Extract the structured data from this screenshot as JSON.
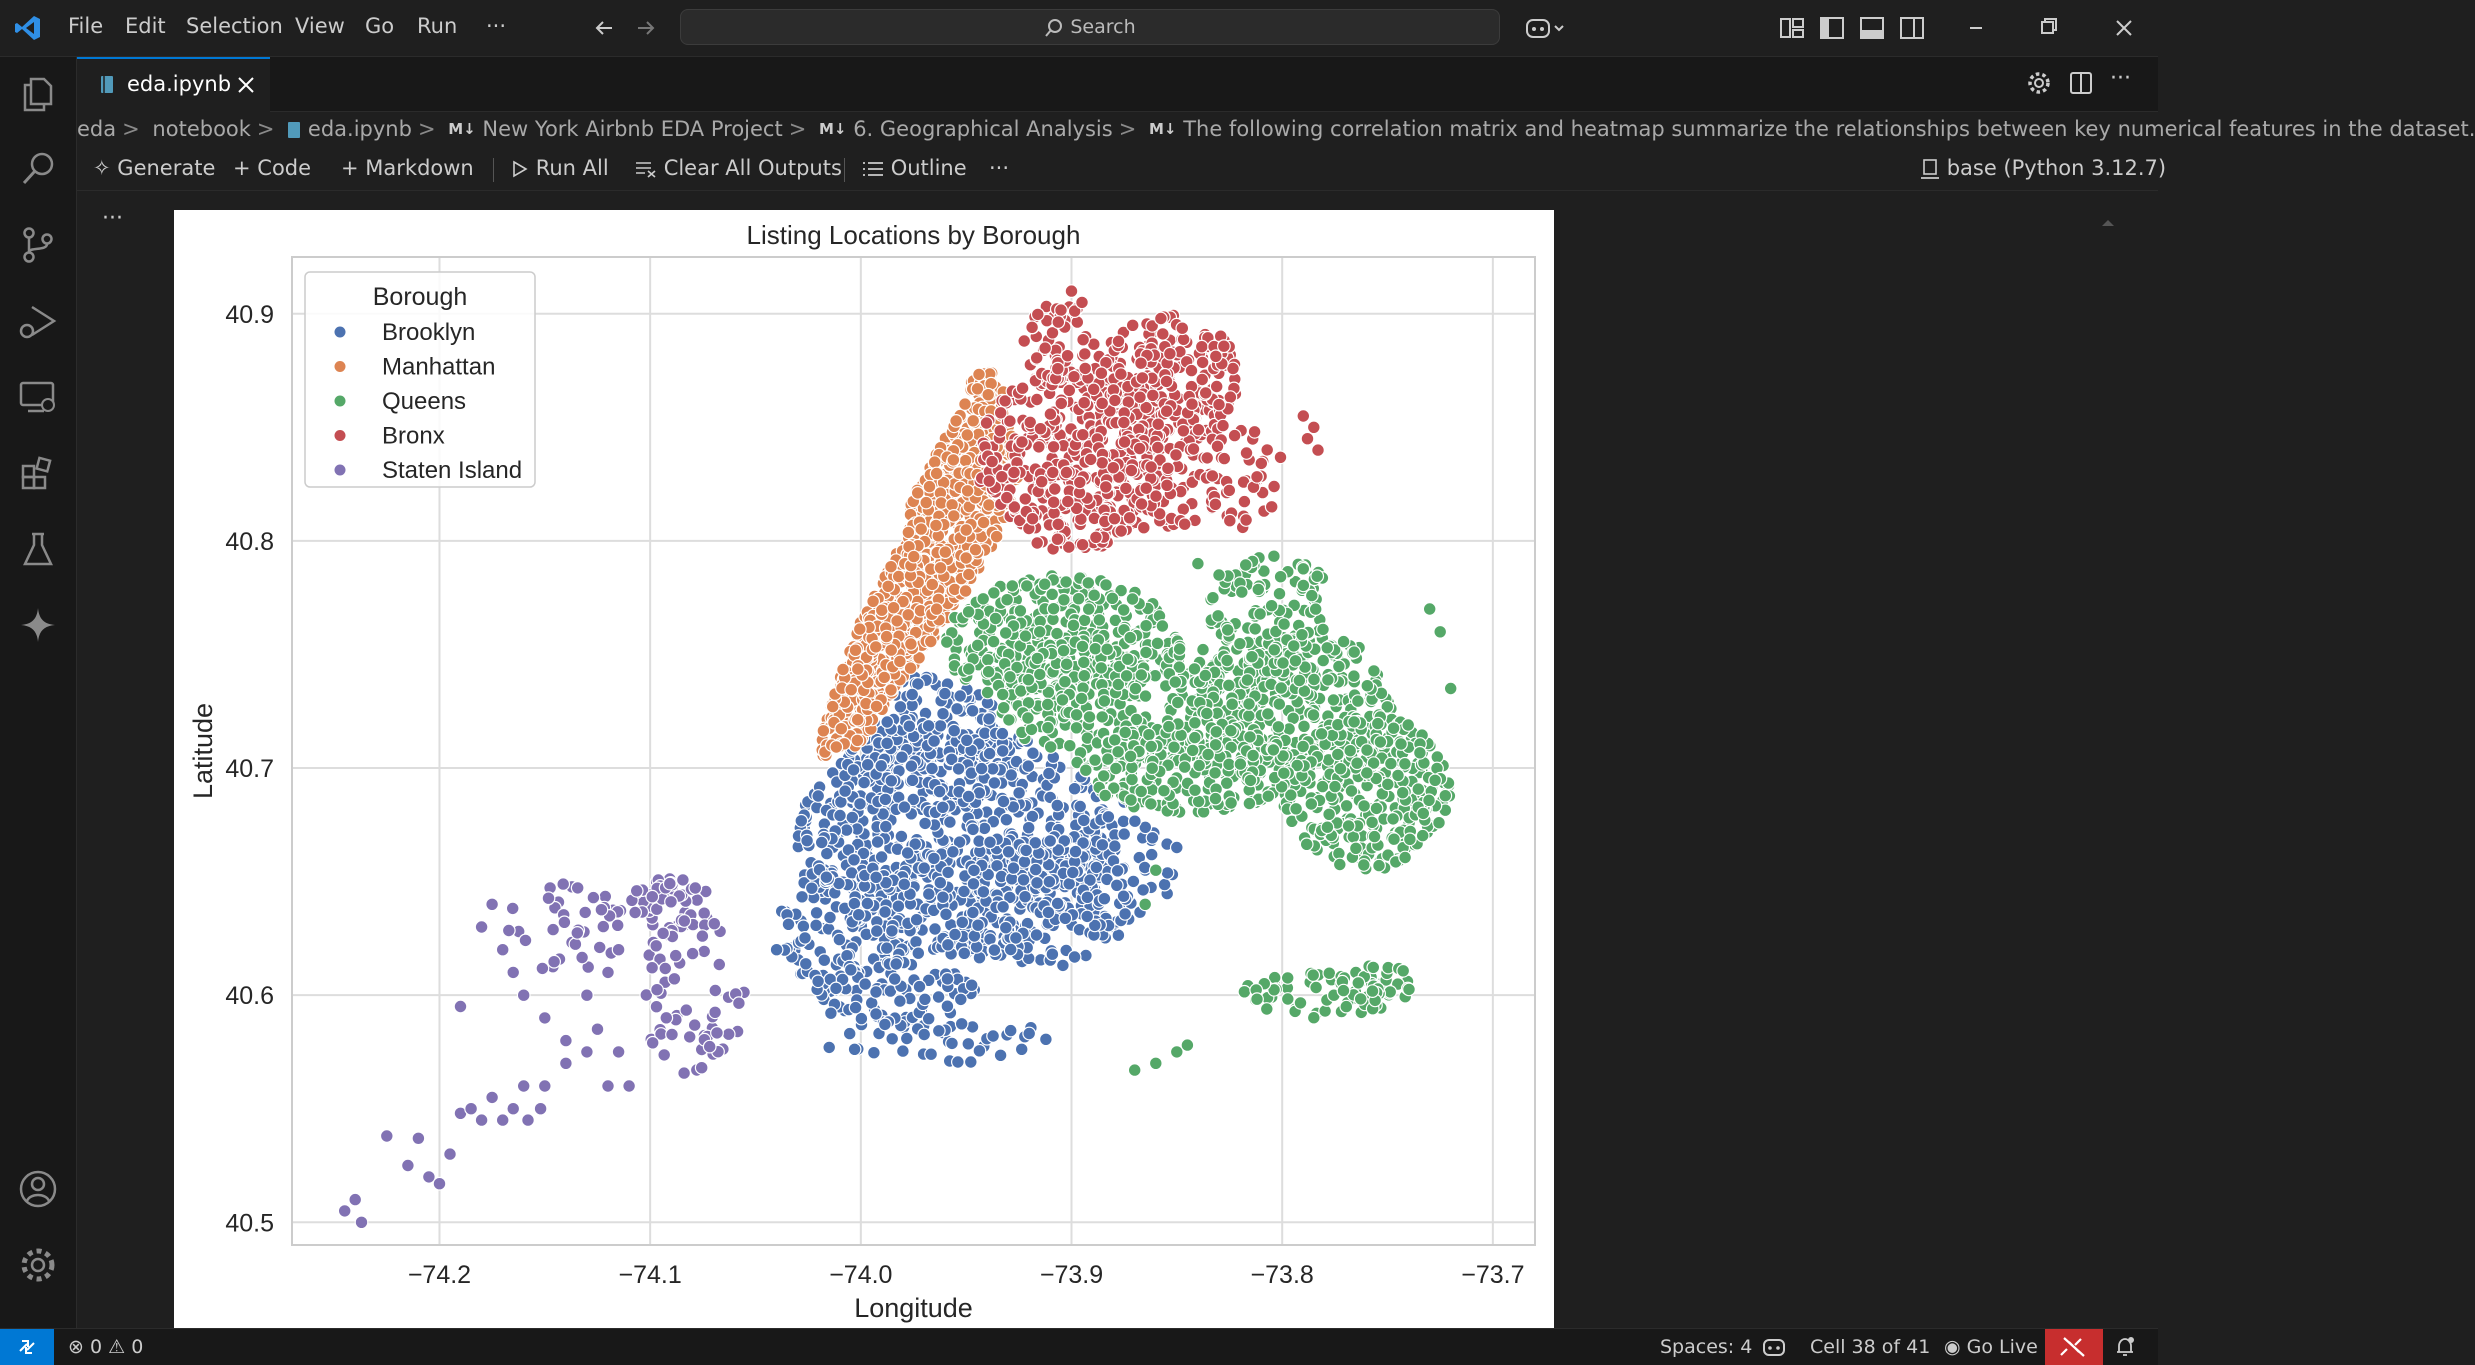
{
  "titlebar": {
    "menu": [
      "File",
      "Edit",
      "Selection",
      "View",
      "Go",
      "Run",
      "···"
    ],
    "search_placeholder": "Search"
  },
  "tabs": [
    {
      "label": "eda.ipynb",
      "active": true
    }
  ],
  "breadcrumb": [
    "eda",
    "notebook",
    "eda.ipynb",
    "New York Airbnb EDA Project",
    "6. Geographical Analysis",
    "The following correlation matrix and heatmap summarize the relationships between key numerical features in the dataset."
  ],
  "notebook_toolbar": {
    "generate": "Generate",
    "code": "Code",
    "markdown": "Markdown",
    "run_all": "Run All",
    "clear_outputs": "Clear All Outputs",
    "outline": "Outline",
    "more": "···",
    "kernel": "base (Python 3.12.7)"
  },
  "cell_menu": "···",
  "statusbar": {
    "problems": "0",
    "warnings": "0",
    "spaces": "Spaces: 4",
    "cell_position": "Cell 38 of 41",
    "go_live": "Go Live"
  },
  "colors": {
    "accent": "#0078d4",
    "Brooklyn": "#4c72b0",
    "Manhattan": "#dd8452",
    "Queens": "#55a868",
    "Bronx": "#c44e52",
    "Staten Island": "#8172b3"
  },
  "chart_data": {
    "type": "scatter",
    "title": "Listing Locations by Borough",
    "xlabel": "Longitude",
    "ylabel": "Latitude",
    "xlim": [
      -74.27,
      -73.68
    ],
    "ylim": [
      40.49,
      40.925
    ],
    "xticks": [
      -74.2,
      -74.1,
      -74.0,
      -73.9,
      -73.8,
      -73.7
    ],
    "yticks": [
      40.5,
      40.6,
      40.7,
      40.8,
      40.9
    ],
    "xtick_labels": [
      "−74.2",
      "−74.1",
      "−74.0",
      "−73.9",
      "−73.8",
      "−73.7"
    ],
    "ytick_labels": [
      "40.5",
      "40.6",
      "40.7",
      "40.8",
      "40.9"
    ],
    "grid": true,
    "legend": {
      "title": "Borough",
      "placement": "top-left"
    },
    "series": [
      {
        "name": "Brooklyn",
        "regions": [
          {
            "cx": -73.955,
            "cy": 40.668,
            "rx": 0.075,
            "ry": 0.05,
            "n": 700
          },
          {
            "cx": -73.97,
            "cy": 40.71,
            "rx": 0.04,
            "ry": 0.03,
            "n": 200
          },
          {
            "cx": -73.93,
            "cy": 40.64,
            "rx": 0.06,
            "ry": 0.03,
            "n": 150
          },
          {
            "cx": -73.89,
            "cy": 40.655,
            "rx": 0.04,
            "ry": 0.025,
            "n": 120
          },
          {
            "cx": -74.005,
            "cy": 40.63,
            "rx": 0.035,
            "ry": 0.03,
            "n": 120
          },
          {
            "cx": -73.985,
            "cy": 40.6,
            "rx": 0.04,
            "ry": 0.015,
            "n": 80
          },
          {
            "cx": -73.96,
            "cy": 40.58,
            "rx": 0.05,
            "ry": 0.01,
            "n": 40
          }
        ],
        "points": [
          [
            -74.04,
            40.62
          ],
          [
            -74.015,
            40.577
          ],
          [
            -73.85,
            40.665
          ],
          [
            -73.875,
            40.685
          ],
          [
            -73.93,
            40.74
          ]
        ]
      },
      {
        "name": "Manhattan",
        "polygon": [
          [
            -74.018,
            40.705
          ],
          [
            -74.0,
            40.71
          ],
          [
            -73.975,
            40.745
          ],
          [
            -73.955,
            40.77
          ],
          [
            -73.935,
            40.8
          ],
          [
            -73.925,
            40.83
          ],
          [
            -73.93,
            40.86
          ],
          [
            -73.935,
            40.875
          ],
          [
            -73.945,
            40.875
          ],
          [
            -73.96,
            40.845
          ],
          [
            -73.975,
            40.82
          ],
          [
            -73.985,
            40.79
          ],
          [
            -74.0,
            40.765
          ],
          [
            -74.01,
            40.74
          ],
          [
            -74.02,
            40.71
          ]
        ],
        "n": 1100
      },
      {
        "name": "Queens",
        "regions": [
          {
            "cx": -73.905,
            "cy": 40.755,
            "rx": 0.055,
            "ry": 0.03,
            "n": 350
          },
          {
            "cx": -73.875,
            "cy": 40.73,
            "rx": 0.06,
            "ry": 0.03,
            "n": 300
          },
          {
            "cx": -73.795,
            "cy": 40.73,
            "rx": 0.05,
            "ry": 0.03,
            "n": 300
          },
          {
            "cx": -73.76,
            "cy": 40.69,
            "rx": 0.04,
            "ry": 0.035,
            "n": 300
          },
          {
            "cx": -73.845,
            "cy": 40.7,
            "rx": 0.05,
            "ry": 0.02,
            "n": 220
          },
          {
            "cx": -73.805,
            "cy": 40.77,
            "rx": 0.03,
            "ry": 0.025,
            "n": 120
          },
          {
            "cx": -73.78,
            "cy": 40.6,
            "rx": 0.04,
            "ry": 0.01,
            "n": 60
          },
          {
            "cx": -73.755,
            "cy": 40.605,
            "rx": 0.02,
            "ry": 0.008,
            "n": 30
          }
        ],
        "points": [
          [
            -73.87,
            40.567
          ],
          [
            -73.86,
            40.57
          ],
          [
            -73.85,
            40.575
          ],
          [
            -73.845,
            40.578
          ],
          [
            -73.84,
            40.79
          ],
          [
            -73.83,
            40.785
          ],
          [
            -73.72,
            40.735
          ],
          [
            -73.73,
            40.77
          ],
          [
            -73.725,
            40.76
          ],
          [
            -73.865,
            40.64
          ],
          [
            -73.86,
            40.655
          ]
        ]
      },
      {
        "name": "Bronx",
        "regions": [
          {
            "cx": -73.9,
            "cy": 40.835,
            "rx": 0.045,
            "ry": 0.04,
            "n": 350
          },
          {
            "cx": -73.855,
            "cy": 40.87,
            "rx": 0.035,
            "ry": 0.03,
            "n": 250
          },
          {
            "cx": -73.865,
            "cy": 40.825,
            "rx": 0.04,
            "ry": 0.02,
            "n": 120
          },
          {
            "cx": -73.905,
            "cy": 40.885,
            "rx": 0.02,
            "ry": 0.02,
            "n": 60
          },
          {
            "cx": -73.82,
            "cy": 40.83,
            "rx": 0.02,
            "ry": 0.025,
            "n": 40
          }
        ],
        "points": [
          [
            -73.9,
            40.91
          ],
          [
            -73.895,
            40.905
          ],
          [
            -73.79,
            40.855
          ],
          [
            -73.785,
            40.85
          ],
          [
            -73.783,
            40.84
          ],
          [
            -73.788,
            40.845
          ],
          [
            -73.805,
            40.815
          ],
          [
            -73.83,
            40.86
          ]
        ]
      },
      {
        "name": "Staten Island",
        "regions": [
          {
            "cx": -74.09,
            "cy": 40.64,
            "rx": 0.02,
            "ry": 0.012,
            "n": 50
          },
          {
            "cx": -74.08,
            "cy": 40.6,
            "rx": 0.025,
            "ry": 0.035,
            "n": 60
          },
          {
            "cx": -74.14,
            "cy": 40.63,
            "rx": 0.03,
            "ry": 0.02,
            "n": 40
          }
        ],
        "points": [
          [
            -74.245,
            40.505
          ],
          [
            -74.24,
            40.51
          ],
          [
            -74.237,
            40.5
          ],
          [
            -74.225,
            40.538
          ],
          [
            -74.21,
            40.537
          ],
          [
            -74.215,
            40.525
          ],
          [
            -74.205,
            40.52
          ],
          [
            -74.2,
            40.517
          ],
          [
            -74.195,
            40.53
          ],
          [
            -74.19,
            40.548
          ],
          [
            -74.185,
            40.55
          ],
          [
            -74.18,
            40.545
          ],
          [
            -74.175,
            40.555
          ],
          [
            -74.17,
            40.545
          ],
          [
            -74.165,
            40.55
          ],
          [
            -74.158,
            40.545
          ],
          [
            -74.152,
            40.55
          ],
          [
            -74.16,
            40.56
          ],
          [
            -74.15,
            40.56
          ],
          [
            -74.14,
            40.57
          ],
          [
            -74.13,
            40.575
          ],
          [
            -74.125,
            40.585
          ],
          [
            -74.115,
            40.575
          ],
          [
            -74.12,
            40.56
          ],
          [
            -74.11,
            40.56
          ],
          [
            -74.19,
            40.595
          ],
          [
            -74.18,
            40.63
          ],
          [
            -74.175,
            40.64
          ],
          [
            -74.17,
            40.62
          ],
          [
            -74.165,
            40.61
          ],
          [
            -74.16,
            40.6
          ],
          [
            -74.15,
            40.59
          ],
          [
            -74.14,
            40.58
          ],
          [
            -74.13,
            40.6
          ],
          [
            -74.12,
            40.61
          ],
          [
            -74.115,
            40.62
          ]
        ]
      }
    ]
  }
}
